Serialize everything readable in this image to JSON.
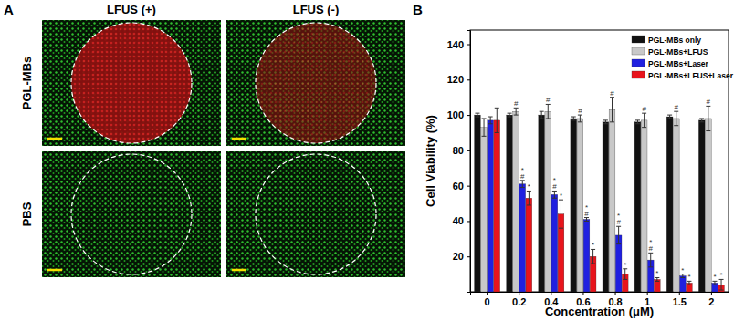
{
  "panel_a": {
    "panel_label": "A",
    "columns": [
      "LFUS (+)",
      "LFUS (-)"
    ],
    "rows": [
      "PGL-MBs",
      "PBS"
    ]
  },
  "chart_data": {
    "type": "bar",
    "panel_label": "B",
    "x_label": "Concentration (μM)",
    "y_label": "Cell Viability (%)",
    "categories": [
      "0",
      "0.2",
      "0.4",
      "0.6",
      "0.8",
      "1",
      "1.5",
      "2"
    ],
    "ylim": [
      0,
      148
    ],
    "yticks": [
      20,
      40,
      60,
      80,
      100,
      120,
      140
    ],
    "legend": "upper right",
    "series": [
      {
        "name": "PGL-MBs only",
        "color": "#111111",
        "values": [
          100,
          100,
          100,
          98,
          96,
          96,
          99,
          97
        ],
        "errors": [
          1,
          1,
          2,
          1,
          1,
          1,
          1,
          1
        ],
        "significance": [
          null,
          null,
          null,
          null,
          null,
          null,
          null,
          null
        ]
      },
      {
        "name": "PGL-MBs+LFUS",
        "color": "#c8c8c8",
        "values": [
          93,
          102,
          102,
          98,
          103,
          97,
          98,
          98
        ],
        "errors": [
          5,
          2,
          4,
          2,
          7,
          4,
          4,
          7
        ],
        "significance": [
          null,
          "#",
          "#",
          "#",
          "#",
          "#",
          "#",
          "#"
        ]
      },
      {
        "name": "PGL-MBs+Laser",
        "color": "#2020e0",
        "values": [
          97,
          61,
          55,
          41,
          32,
          18,
          9,
          5
        ],
        "errors": [
          2,
          2,
          2,
          1,
          5,
          4,
          1,
          1
        ],
        "significance": [
          null,
          "*#",
          "*#",
          "*#",
          "*#",
          "*#",
          "*",
          "*"
        ]
      },
      {
        "name": "PGL-MBs+LFUS+Laser",
        "color": "#e8141c",
        "values": [
          97,
          53,
          44,
          20,
          10,
          7,
          5,
          4
        ],
        "errors": [
          7,
          4,
          8,
          4,
          3,
          1,
          1,
          3
        ],
        "significance": [
          null,
          "*",
          "*",
          "*",
          "*",
          "*",
          "*",
          "*"
        ]
      }
    ]
  }
}
